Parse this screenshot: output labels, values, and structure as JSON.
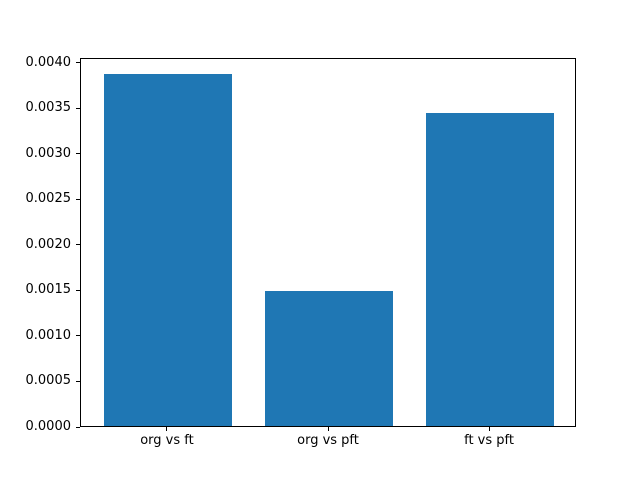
{
  "chart_data": {
    "type": "bar",
    "categories": [
      "org vs ft",
      "org vs pft",
      "ft vs pft"
    ],
    "values": [
      0.00386,
      0.00148,
      0.00344
    ],
    "title": "",
    "xlabel": "",
    "ylabel": "",
    "ylim": [
      0,
      0.00405
    ],
    "ytick_values": [
      0.0,
      0.0005,
      0.001,
      0.0015,
      0.002,
      0.0025,
      0.003,
      0.0035,
      0.004
    ],
    "ytick_labels": [
      "0.0000",
      "0.0005",
      "0.0010",
      "0.0015",
      "0.0020",
      "0.0025",
      "0.0030",
      "0.0035",
      "0.0040"
    ],
    "bar_color": "#1f77b4",
    "bar_width_data_units": 0.8,
    "x_margin_data_units": 0.54,
    "grid": false,
    "legend_position": "none"
  }
}
